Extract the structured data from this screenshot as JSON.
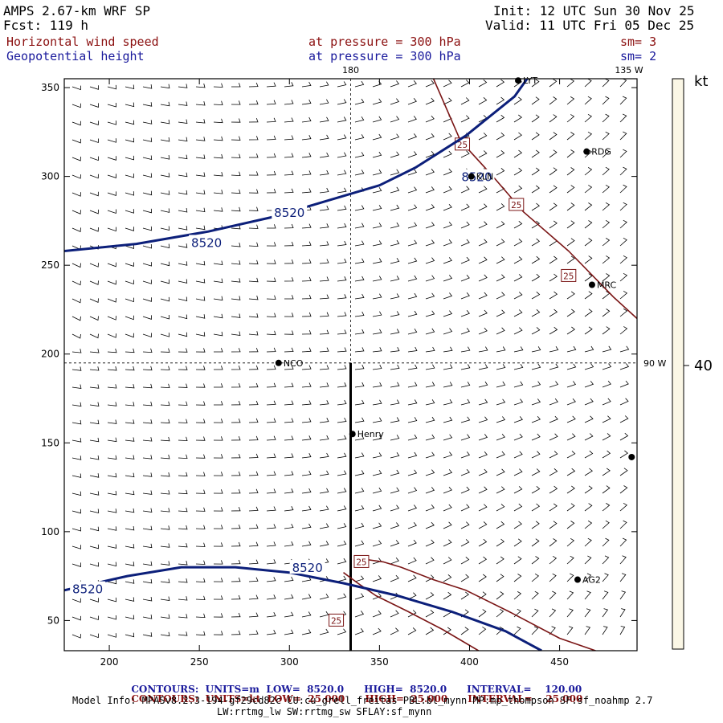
{
  "header": {
    "model": "AMPS 2.67-km WRF SP",
    "forecast": "Fcst: 119 h",
    "init": "Init: 12 UTC Sun 30 Nov 25",
    "valid": "Valid: 11 UTC Fri 05 Dec 25",
    "field1_name": "Horizontal wind speed",
    "field1_level": "at pressure = 300 hPa",
    "field1_smooth": "sm= 3",
    "field2_name": "Geopotential height",
    "field2_level": "at pressure = 300 hPa",
    "field2_smooth": "sm= 2"
  },
  "colors": {
    "height_contour": "#0c1f7a",
    "speed_contour": "#7a1515",
    "barb": "#000000",
    "colorbar_fill": "#fbf7e6"
  },
  "chart_data": {
    "type": "contour-map",
    "xlim": [
      175,
      493
    ],
    "ylim": [
      33,
      355
    ],
    "x_ticks": [
      200,
      250,
      300,
      350,
      400,
      450
    ],
    "y_ticks": [
      50,
      100,
      150,
      200,
      250,
      300,
      350
    ],
    "meridian_labels": [
      {
        "label": "180",
        "x": 334,
        "y": 355
      },
      {
        "label": "135 W",
        "x": 493,
        "y": 355
      },
      {
        "label": "90 W",
        "x": 493,
        "y": 195
      }
    ],
    "geopotential_height_contours": [
      {
        "value": 8520,
        "label": "8520",
        "points": [
          [
            175,
            258
          ],
          [
            215,
            262
          ],
          [
            255,
            269
          ],
          [
            290,
            277
          ],
          [
            320,
            286
          ],
          [
            350,
            295
          ],
          [
            370,
            305
          ],
          [
            398,
            323
          ],
          [
            425,
            345
          ],
          [
            432,
            355
          ]
        ],
        "label_at": [
          [
            254,
            263
          ],
          [
            300,
            280
          ],
          [
            404,
            300
          ]
        ]
      },
      {
        "value": 8520,
        "label": "8520",
        "points": [
          [
            175,
            67
          ],
          [
            210,
            75
          ],
          [
            240,
            80
          ],
          [
            270,
            80
          ],
          [
            300,
            77
          ],
          [
            330,
            71
          ],
          [
            360,
            64
          ],
          [
            390,
            55
          ],
          [
            420,
            44
          ],
          [
            440,
            33
          ]
        ],
        "label_at": [
          [
            188,
            68
          ],
          [
            310,
            80
          ]
        ]
      }
    ],
    "wind_speed_contours_kt": [
      {
        "value": 25,
        "label": "25",
        "points": [
          [
            380,
            355
          ],
          [
            395,
            320
          ],
          [
            413,
            300
          ],
          [
            430,
            280
          ],
          [
            455,
            258
          ],
          [
            480,
            232
          ],
          [
            493,
            220
          ]
        ],
        "label_at": [
          [
            396,
            318
          ],
          [
            426,
            284
          ],
          [
            455,
            244
          ]
        ]
      },
      {
        "value": 25,
        "label": "25",
        "points": [
          [
            338,
            85
          ],
          [
            352,
            83
          ],
          [
            362,
            80
          ],
          [
            380,
            73
          ],
          [
            398,
            67
          ],
          [
            422,
            55
          ],
          [
            450,
            40
          ],
          [
            470,
            33
          ]
        ],
        "label_at": [
          [
            340,
            83
          ]
        ]
      },
      {
        "value": 25,
        "label": "25",
        "points": [
          [
            330,
            77
          ],
          [
            338,
            71
          ],
          [
            348,
            64
          ],
          [
            366,
            55
          ],
          [
            385,
            45
          ],
          [
            405,
            33
          ]
        ],
        "label_at": [
          [
            326,
            50
          ]
        ]
      }
    ],
    "stations": [
      {
        "name": "NCO",
        "x": 294,
        "y": 195
      },
      {
        "name": "Henry",
        "x": 335,
        "y": 155
      },
      {
        "name": "KLN",
        "x": 401,
        "y": 300
      },
      {
        "name": "RDG",
        "x": 465,
        "y": 314
      },
      {
        "name": "MRC",
        "x": 468,
        "y": 239
      },
      {
        "name": "AG2",
        "x": 460,
        "y": 73
      },
      {
        "name": "LYT",
        "x": 427,
        "y": 354
      },
      {
        "name": "",
        "x": 490,
        "y": 142
      }
    ],
    "colorbar": {
      "unit": "kt",
      "tick": 40
    }
  },
  "footer": {
    "line1": {
      "label": "CONTOURS:",
      "units": "UNITS=m",
      "low_label": "LOW=",
      "low": "8520.0",
      "high_label": "HIGH=",
      "high": "8520.0",
      "interval_label": "INTERVAL=",
      "interval": "120.00"
    },
    "line2": {
      "label": "CONTOURS:",
      "units": "UNITS=kt",
      "low_label": "LOW=",
      "low": "25.000",
      "high_label": "HIGH=",
      "high": "25.000",
      "interval_label": "INTERVAL=",
      "interval": "25.000"
    },
    "model_info": "Model Info: MPASv8.2.3-194-gf29cd82c CU:cu_grell_freitas PBL:bl_mynn MP:mp_thompson SF:sf_noahmp 2.7",
    "model_info2": "LW:rrtmg_lw SW:rrtmg_sw SFLAY:sf_mynn"
  }
}
